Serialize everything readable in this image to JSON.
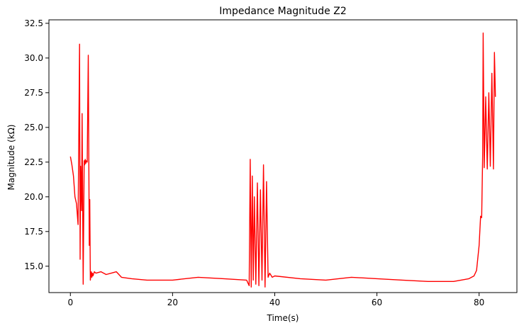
{
  "chart_data": {
    "type": "line",
    "title": "Impedance Magnitude Z2",
    "xlabel": "Time(s)",
    "ylabel": "Magnitude (kΩ)",
    "xlim": [
      -4.2,
      87.4
    ],
    "ylim": [
      13.1,
      32.75
    ],
    "x_ticks": [
      0,
      20,
      40,
      60,
      80
    ],
    "y_ticks": [
      15.0,
      17.5,
      20.0,
      22.5,
      25.0,
      27.5,
      30.0,
      32.5
    ],
    "x_tick_labels": [
      "0",
      "20",
      "40",
      "60",
      "80"
    ],
    "y_tick_labels": [
      "15.0",
      "17.5",
      "20.0",
      "22.5",
      "25.0",
      "27.5",
      "30.0",
      "32.5"
    ],
    "grid": false,
    "legend": "none",
    "series": [
      {
        "color": "#ff0000",
        "x": [
          0,
          0.3,
          0.6,
          0.9,
          1.2,
          1.5,
          1.8,
          1.9,
          2.0,
          2.1,
          2.2,
          2.3,
          2.5,
          2.7,
          2.8,
          2.9,
          3.0,
          3.1,
          3.3,
          3.5,
          3.7,
          3.8,
          3.9,
          4.0,
          4.1,
          4.2,
          4.3,
          4.4,
          4.5,
          4.7,
          5,
          6,
          7,
          8,
          9,
          10,
          12,
          15,
          20,
          25,
          30,
          34.5,
          35.0,
          35.2,
          35.4,
          35.6,
          35.8,
          36.0,
          36.3,
          36.6,
          36.9,
          37.2,
          37.5,
          37.8,
          38.1,
          38.4,
          38.7,
          39.0,
          39.5,
          40,
          45,
          50,
          55,
          60,
          65,
          70,
          75,
          78,
          79,
          79.5,
          80,
          80.3,
          80.5,
          80.7,
          80.8,
          81.0,
          81.3,
          81.6,
          81.9,
          82.2,
          82.5,
          82.8,
          83.0,
          83.2
        ],
        "y": [
          22.9,
          22.3,
          21.5,
          20.0,
          19.5,
          18.0,
          31.0,
          15.5,
          22.2,
          21.0,
          19.0,
          26.0,
          13.7,
          22.6,
          22.3,
          22.7,
          22.4,
          22.6,
          22.5,
          30.2,
          16.5,
          19.8,
          14.0,
          14.3,
          14.6,
          14.2,
          14.5,
          14.3,
          14.4,
          14.6,
          14.5,
          14.6,
          14.4,
          14.5,
          14.6,
          14.2,
          14.1,
          14.0,
          14.0,
          14.2,
          14.1,
          14.0,
          13.6,
          22.7,
          13.5,
          21.5,
          14.0,
          20.0,
          13.7,
          21.0,
          13.6,
          20.5,
          14.0,
          22.3,
          13.5,
          21.1,
          14.2,
          14.5,
          14.2,
          14.3,
          14.1,
          14.0,
          14.2,
          14.1,
          14.0,
          13.9,
          13.9,
          14.1,
          14.3,
          14.7,
          16.5,
          18.6,
          18.5,
          23.0,
          31.8,
          22.1,
          27.2,
          22.0,
          27.5,
          22.2,
          28.9,
          22.0,
          30.4,
          27.2
        ]
      }
    ]
  }
}
